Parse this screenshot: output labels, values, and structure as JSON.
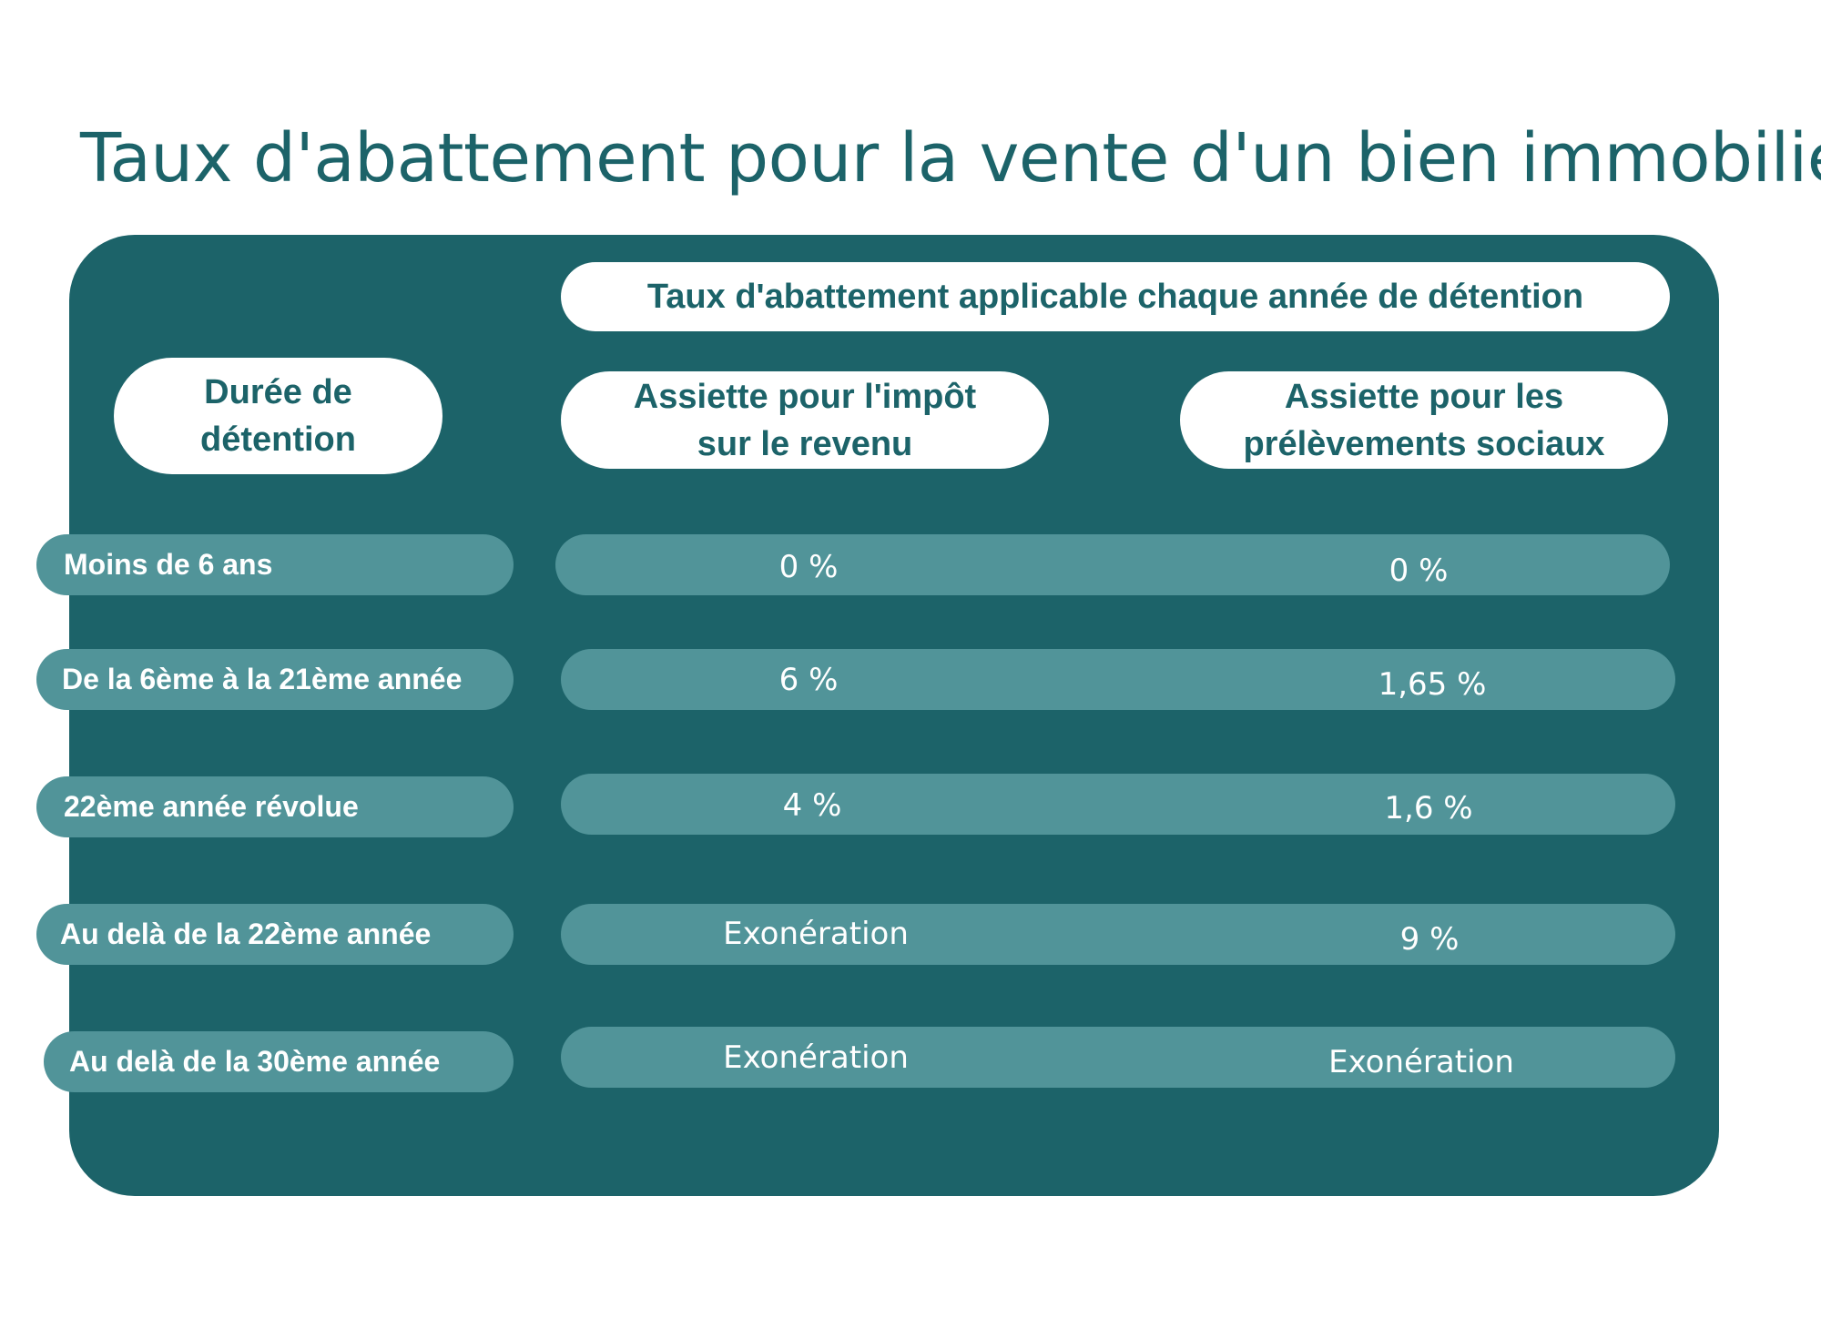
{
  "title": "Taux d'abattement pour la vente d'un bien immobilier",
  "colors": {
    "teal_dark": "#1c6369",
    "teal_light": "#519499",
    "white": "#ffffff"
  },
  "header": {
    "top": "Taux d'abattement applicable chaque année de détention",
    "duree_line1": "Durée de",
    "duree_line2": "détention",
    "ir_line1": "Assiette pour l'impôt",
    "ir_line2": "sur le revenu",
    "ps_line1": "Assiette pour les",
    "ps_line2": "prélèvements sociaux"
  },
  "rows": [
    {
      "label": "Moins de 6 ans",
      "ir": "0 %",
      "ps": "0 %"
    },
    {
      "label": "De la 6ème à la 21ème année",
      "ir": "6 %",
      "ps": "1,65 %"
    },
    {
      "label": "22ème année révolue",
      "ir": "4 %",
      "ps": "1,6 %"
    },
    {
      "label": "Au delà de la 22ème année",
      "ir": "Exonération",
      "ps": "9 %"
    },
    {
      "label": "Au delà de la 30ème année",
      "ir": "Exonération",
      "ps": "Exonération"
    }
  ]
}
